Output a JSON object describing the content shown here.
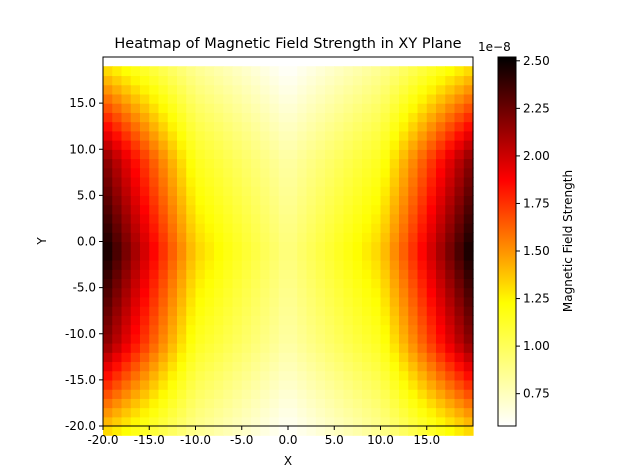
{
  "chart_data": {
    "type": "heatmap",
    "title": "Heatmap of Magnetic Field Strength in XY Plane",
    "xlabel": "X",
    "ylabel": "Y",
    "xlim": [
      -20,
      20
    ],
    "ylim": [
      20,
      -20
    ],
    "y_inverted": true,
    "grid": false,
    "colormap": "hot_r",
    "colormap_stops": [
      "#ffffff",
      "#ffff00",
      "#ff0000",
      "#000000"
    ],
    "x_ticks": [
      -20,
      -15,
      -10,
      -5,
      0,
      5,
      10,
      15
    ],
    "x_tick_labels": [
      "-20.0",
      "-15.0",
      "-10.0",
      "-5.0",
      "0.0",
      "5.0",
      "10.0",
      "15.0"
    ],
    "y_ticks": [
      -20,
      -15,
      -10,
      -5,
      0,
      5,
      10,
      15
    ],
    "y_tick_labels": [
      "-20.0",
      "-15.0",
      "-10.0",
      "-5.0",
      "0.0",
      "5.0",
      "10.0",
      "15.0"
    ],
    "colorbar": {
      "label": "Magnetic Field Strength",
      "offset_text": "1e−8",
      "range": [
        0.58,
        2.52
      ],
      "ticks": [
        0.75,
        1.0,
        1.25,
        1.5,
        1.75,
        2.0,
        2.25,
        2.5
      ],
      "tick_labels": [
        "0.75",
        "1.00",
        "1.25",
        "1.50",
        "1.75",
        "2.00",
        "2.25",
        "2.50"
      ]
    },
    "grid_x": [
      -20,
      -10,
      0,
      10,
      20
    ],
    "grid_y": [
      -20,
      -10,
      0,
      10,
      20
    ],
    "values_e8": [
      [
        1.3,
        0.85,
        0.58,
        0.85,
        1.3
      ],
      [
        2.2,
        1.15,
        0.8,
        1.15,
        2.2
      ],
      [
        2.52,
        1.35,
        0.9,
        1.35,
        2.52
      ],
      [
        2.2,
        1.15,
        0.8,
        1.15,
        2.2
      ],
      [
        1.3,
        0.85,
        0.58,
        0.85,
        1.3
      ]
    ]
  }
}
